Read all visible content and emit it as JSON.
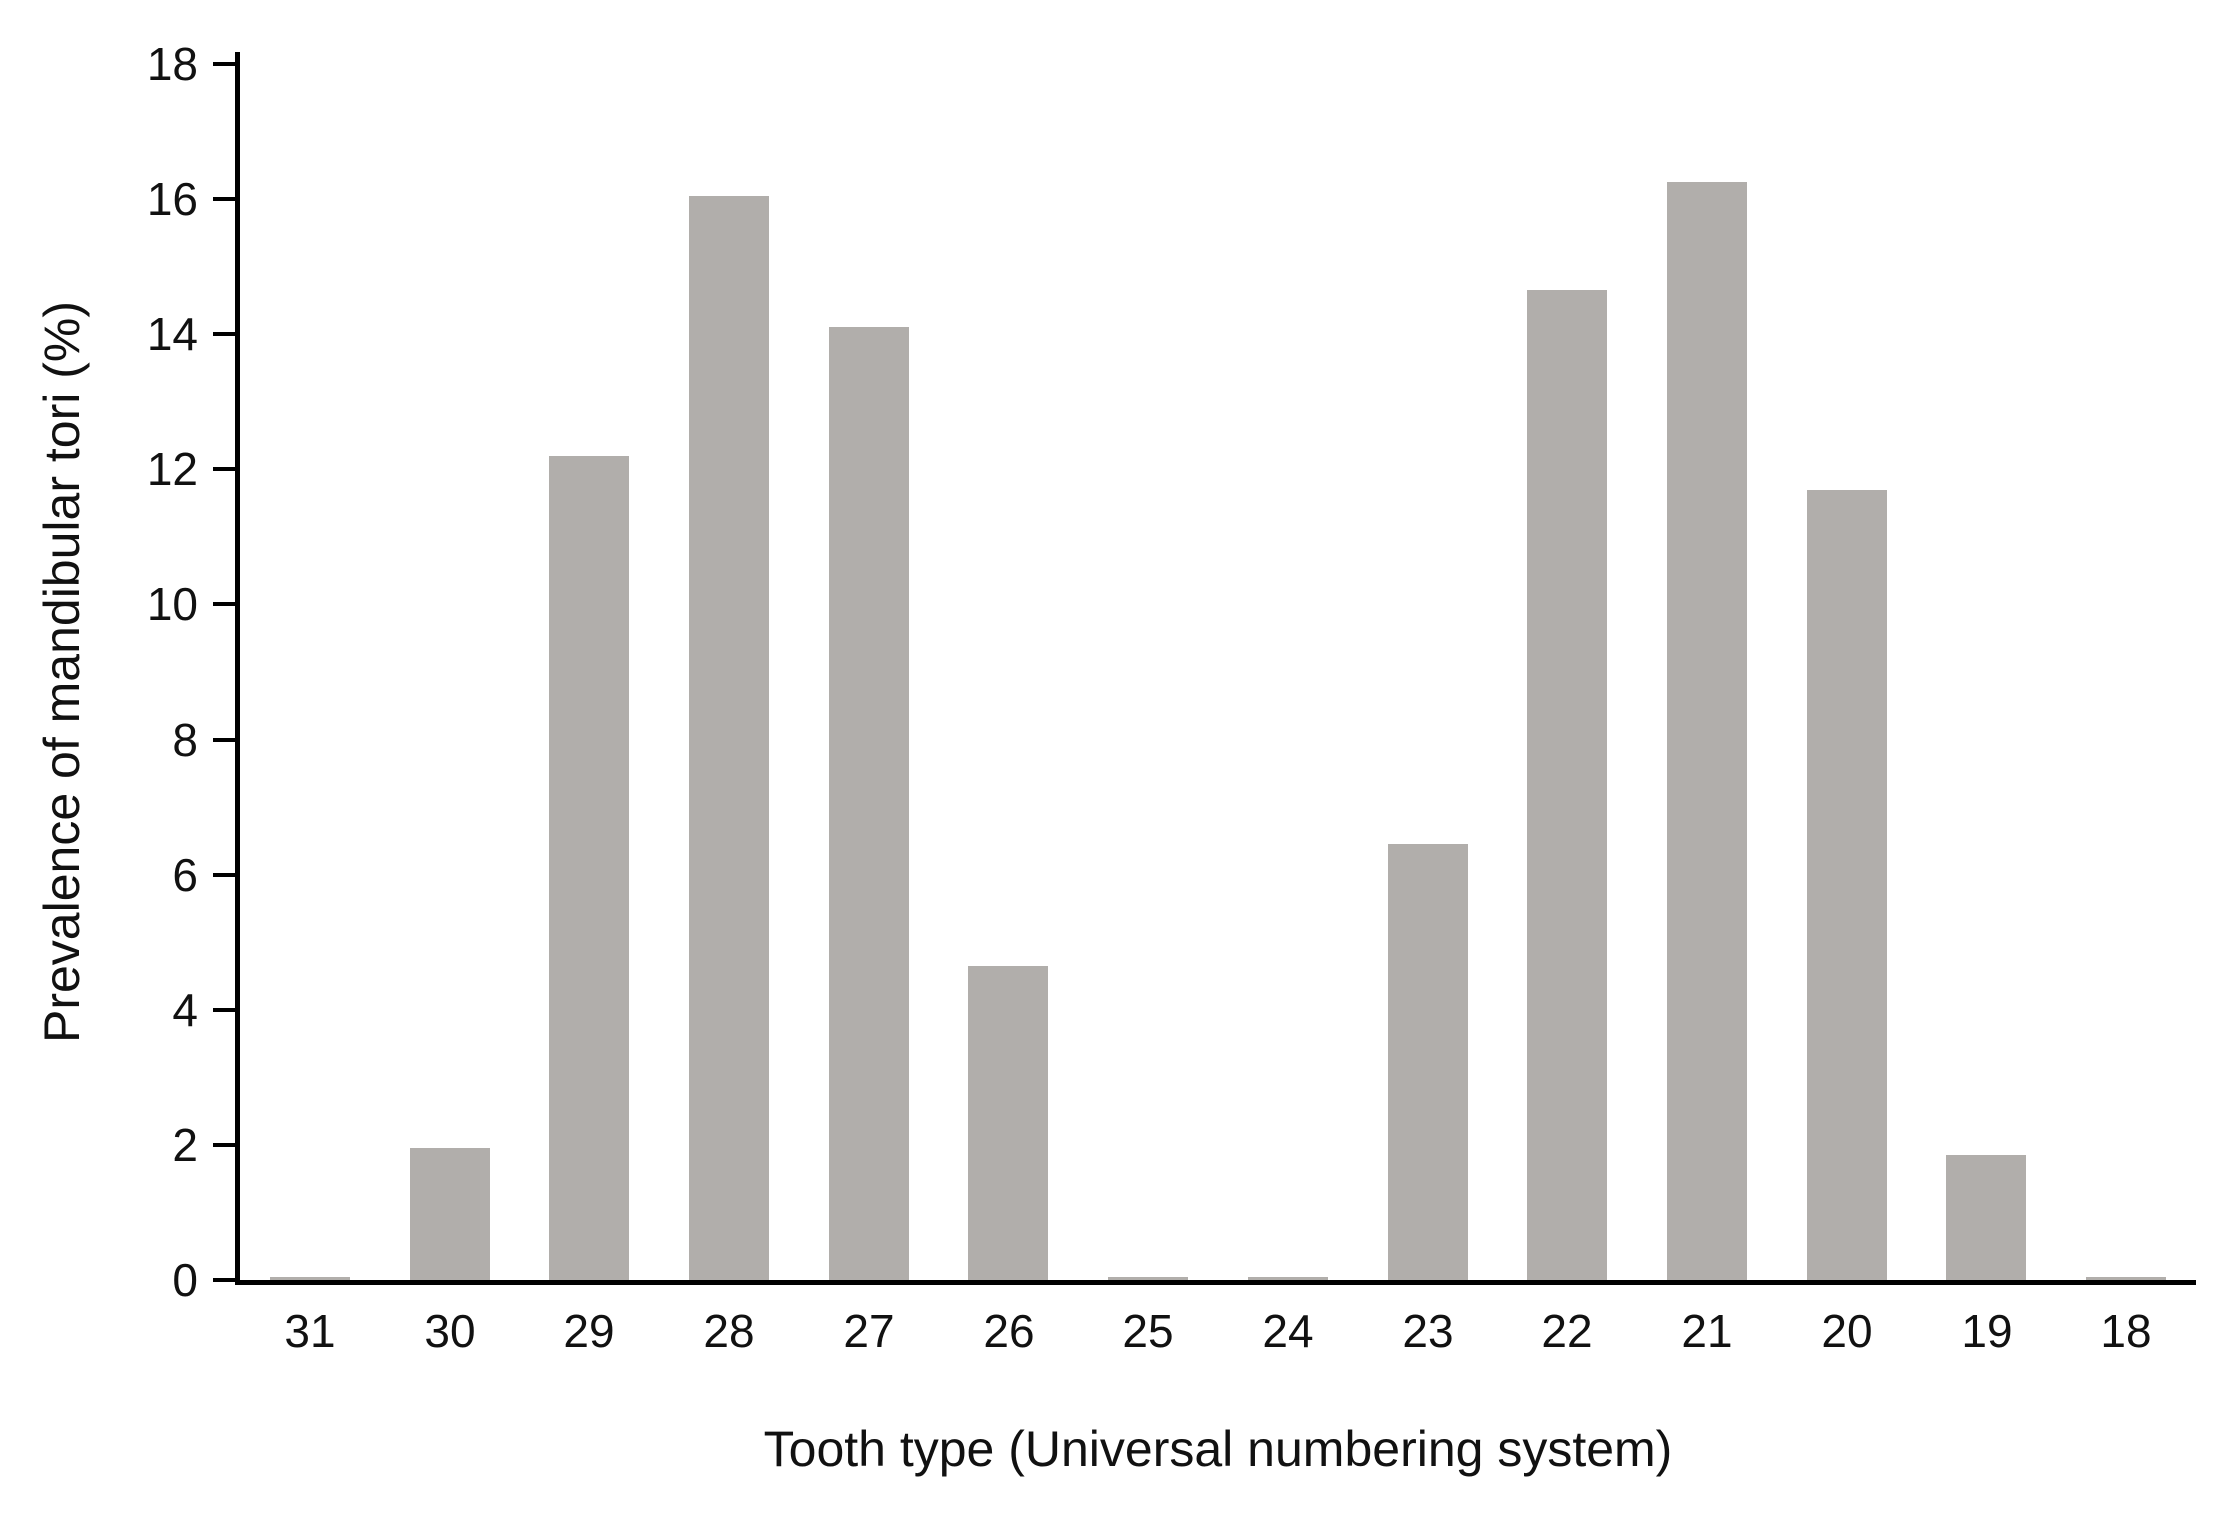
{
  "chart_data": {
    "type": "bar",
    "title": "",
    "xlabel": "Tooth type (Universal numbering system)",
    "ylabel": "Prevalence of mandibular tori (%)",
    "categories": [
      "31",
      "30",
      "29",
      "28",
      "27",
      "26",
      "25",
      "24",
      "23",
      "22",
      "21",
      "20",
      "19",
      "18"
    ],
    "values": [
      0.05,
      1.95,
      12.2,
      16.05,
      14.1,
      4.65,
      0.05,
      0.05,
      6.45,
      14.65,
      16.25,
      11.7,
      1.85,
      0.05
    ],
    "ylim": [
      0,
      18
    ],
    "yticks": [
      0,
      2,
      4,
      6,
      8,
      10,
      12,
      14,
      16,
      18
    ],
    "grid": false,
    "legend": false,
    "bar_color": "#b1aeab",
    "axis_color": "#000000",
    "background_color": "#ffffff"
  }
}
